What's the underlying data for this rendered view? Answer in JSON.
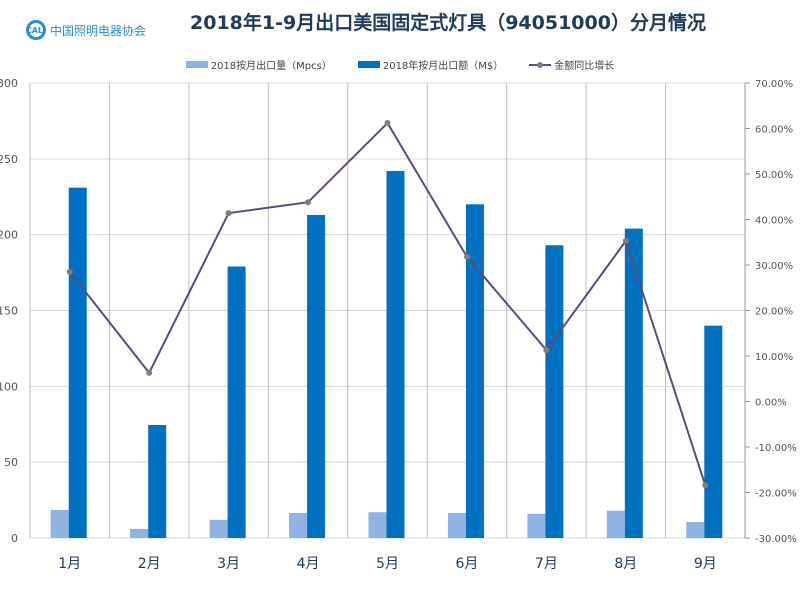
{
  "logo_text": "中国照明电器协会",
  "chart_data": {
    "type": "bar",
    "title": "2018年1-9月出口美国固定式灯具（94051000）分月情况",
    "categories": [
      "1月",
      "2月",
      "3月",
      "4月",
      "5月",
      "6月",
      "7月",
      "8月",
      "9月"
    ],
    "series": [
      {
        "name": "2018按月出口量（Mpcs）",
        "type": "bar",
        "axis": "left",
        "color": "#8db4e2",
        "values": [
          18.5,
          6,
          12,
          16.5,
          17,
          16.5,
          16,
          18,
          10.5
        ]
      },
      {
        "name": "2018年按月出口额（M$）",
        "type": "bar",
        "axis": "left",
        "color": "#0070c0",
        "values": [
          231,
          74.5,
          179,
          213,
          242,
          220,
          193,
          204,
          140
        ]
      },
      {
        "name": "金额同比增长",
        "type": "line",
        "axis": "right",
        "color": "#604a7b",
        "values": [
          28.5,
          6.3,
          41.4,
          43.8,
          61.2,
          31.8,
          11.3,
          35.3,
          -18.4
        ]
      }
    ],
    "yleft": {
      "ylim": [
        0,
        300
      ],
      "ticks": [
        "0",
        "50",
        "100",
        "150",
        "200",
        "250",
        "300"
      ]
    },
    "yright": {
      "ylim": [
        -30,
        70
      ],
      "ticks": [
        "-30.00%",
        "-20.00%",
        "-10.00%",
        "0.00%",
        "10.00%",
        "20.00%",
        "30.00%",
        "40.00%",
        "50.00%",
        "60.00%",
        "70.00%"
      ]
    },
    "grid": true,
    "legend": "top"
  }
}
